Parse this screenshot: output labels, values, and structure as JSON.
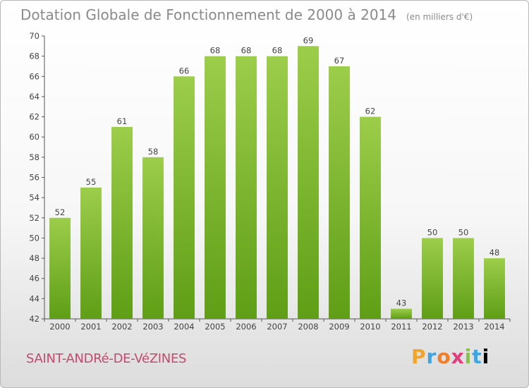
{
  "header": {
    "title": "Dotation Globale de Fonctionnement de 2000 à 2014",
    "unit": "(en milliers d'€)"
  },
  "footer": {
    "commune": "SAINT-ANDRé-DE-VéZINES",
    "logo_letters": [
      "P",
      "r",
      "o",
      "x",
      "i",
      "t",
      "i"
    ]
  },
  "colors": {
    "bar_top": "#9ccd4b",
    "bar_bottom": "#5f9e16",
    "commune": "#c24a6d",
    "title": "#8a8a8a"
  },
  "chart_data": {
    "type": "bar",
    "title": "Dotation Globale de Fonctionnement de 2000 à 2014",
    "subtitle": "(en milliers d'€)",
    "xlabel": "",
    "ylabel": "",
    "categories": [
      "2000",
      "2001",
      "2002",
      "2003",
      "2004",
      "2005",
      "2006",
      "2007",
      "2008",
      "2009",
      "2010",
      "2011",
      "2012",
      "2013",
      "2014"
    ],
    "values": [
      52,
      55,
      61,
      58,
      66,
      68,
      68,
      68,
      69,
      67,
      62,
      43,
      50,
      50,
      48
    ],
    "ylim": [
      42,
      70
    ],
    "yticks": [
      42,
      44,
      46,
      48,
      50,
      52,
      54,
      56,
      58,
      60,
      62,
      64,
      66,
      68,
      70
    ],
    "grid": false,
    "legend": "none"
  }
}
